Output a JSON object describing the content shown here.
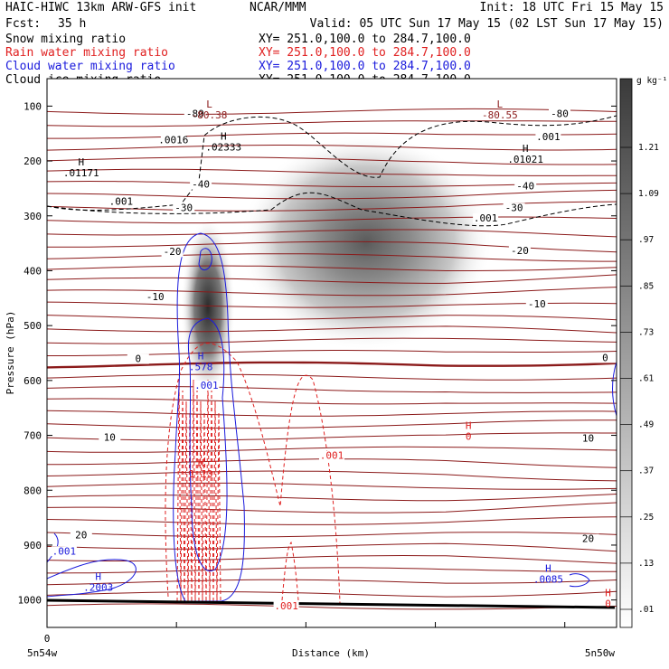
{
  "header": {
    "model_line": "HAIC-HIWC 13km ARW-GFS init",
    "org": "NCAR/MMM",
    "init": "Init: 18 UTC Fri 15 May 15",
    "fcst_label": "Fcst:",
    "fcst_value": "35 h",
    "valid": "Valid: 05 UTC Sun 17 May 15 (02 LST Sun 17 May 15)"
  },
  "fields": [
    {
      "name": "Snow mixing ratio",
      "xy": "XY= 251.0,100.0 to 284.7,100.0",
      "color": "#000000"
    },
    {
      "name": "Rain water mixing ratio",
      "xy": "XY= 251.0,100.0 to 284.7,100.0",
      "color": "#e02020"
    },
    {
      "name": "Cloud water mixing ratio",
      "xy": "XY= 251.0,100.0 to 284.7,100.0",
      "color": "#1a1adc"
    },
    {
      "name": "Cloud ice mixing ratio",
      "xy": "XY= 251.0,100.0 to 284.7,100.0",
      "color": "#000000"
    }
  ],
  "colors": {
    "temperature": "#8b1a1a",
    "rain": "#e02020",
    "cloud_water": "#1a1adc",
    "cloud_ice": "#000000",
    "terrain": "#000000"
  },
  "chart_data": {
    "type": "heatmap",
    "title": "",
    "xlabel": "Distance (km)",
    "ylabel": "Pressure (hPa)",
    "x_tick_labels": [
      "0"
    ],
    "x_endpoint_labels": [
      "5n54w",
      "5n50w"
    ],
    "y_ticks": [
      100,
      200,
      300,
      400,
      500,
      600,
      700,
      800,
      900,
      1000
    ],
    "ylim": [
      1050,
      50
    ],
    "colorbar": {
      "unit": "g kg⁻¹",
      "ticks": [
        ".01",
        ".13",
        ".25",
        ".37",
        ".49",
        ".61",
        ".73",
        ".85",
        ".97",
        "1.09",
        "1.21"
      ]
    },
    "temperature_contour_labels": [
      {
        "value": "-80",
        "x": 0.26,
        "p": 118
      },
      {
        "value": "-40",
        "x": 0.27,
        "p": 247
      },
      {
        "value": "-30",
        "x": 0.24,
        "p": 290
      },
      {
        "value": "-20",
        "x": 0.22,
        "p": 370
      },
      {
        "value": "-10",
        "x": 0.19,
        "p": 452
      },
      {
        "value": "0",
        "x": 0.16,
        "p": 565
      },
      {
        "value": "10",
        "x": 0.11,
        "p": 708
      },
      {
        "value": "20",
        "x": 0.06,
        "p": 886
      },
      {
        "value": "-80",
        "x": 0.9,
        "p": 118
      },
      {
        "value": "-40",
        "x": 0.84,
        "p": 250
      },
      {
        "value": "-30",
        "x": 0.82,
        "p": 290
      },
      {
        "value": "-20",
        "x": 0.83,
        "p": 368
      },
      {
        "value": "-10",
        "x": 0.86,
        "p": 465
      },
      {
        "value": "0",
        "x": 0.98,
        "p": 563
      },
      {
        "value": "10",
        "x": 0.95,
        "p": 710
      },
      {
        "value": "20",
        "x": 0.95,
        "p": 893
      }
    ],
    "temperature_extrema": [
      {
        "kind": "L",
        "value": "-80.38",
        "x": 0.285,
        "p": 119
      },
      {
        "kind": "L",
        "value": "-80.55",
        "x": 0.795,
        "p": 119
      }
    ],
    "cloud_ice_labels": [
      {
        "kind": "H",
        "value": ".01171",
        "x": 0.06,
        "p": 225
      },
      {
        "kind": "H",
        "value": ".02333",
        "x": 0.31,
        "p": 178
      },
      {
        "kind": "H",
        "value": ".01021",
        "x": 0.84,
        "p": 200
      },
      {
        "kind": "contour",
        "value": ".0016",
        "x": 0.222,
        "p": 168
      },
      {
        "kind": "contour",
        "value": ".001",
        "x": 0.13,
        "p": 280
      },
      {
        "kind": "contour",
        "value": ".001",
        "x": 0.88,
        "p": 162
      },
      {
        "kind": "contour",
        "value": ".001",
        "x": 0.77,
        "p": 310
      }
    ],
    "cloud_water_labels": [
      {
        "kind": "H",
        "value": ".578",
        "x": 0.27,
        "p": 578
      },
      {
        "kind": "contour",
        "value": ".001",
        "x": 0.28,
        "p": 615
      },
      {
        "kind": "contour",
        "value": ".001",
        "x": 0.03,
        "p": 917
      },
      {
        "kind": "H",
        "value": ".2003",
        "x": 0.09,
        "p": 980
      },
      {
        "kind": "H",
        "value": ".0085",
        "x": 0.88,
        "p": 965
      }
    ],
    "rain_labels": [
      {
        "kind": "H",
        "value": "1.13",
        "x": 0.27,
        "p": 773
      },
      {
        "kind": "contour",
        "value": ".001",
        "x": 0.5,
        "p": 743
      },
      {
        "kind": "H",
        "value": "0",
        "x": 0.74,
        "p": 705
      },
      {
        "kind": "contour",
        "value": ".001",
        "x": 0.42,
        "p": 1017
      },
      {
        "kind": "H",
        "value": "0",
        "x": 0.985,
        "p": 1010
      }
    ]
  }
}
